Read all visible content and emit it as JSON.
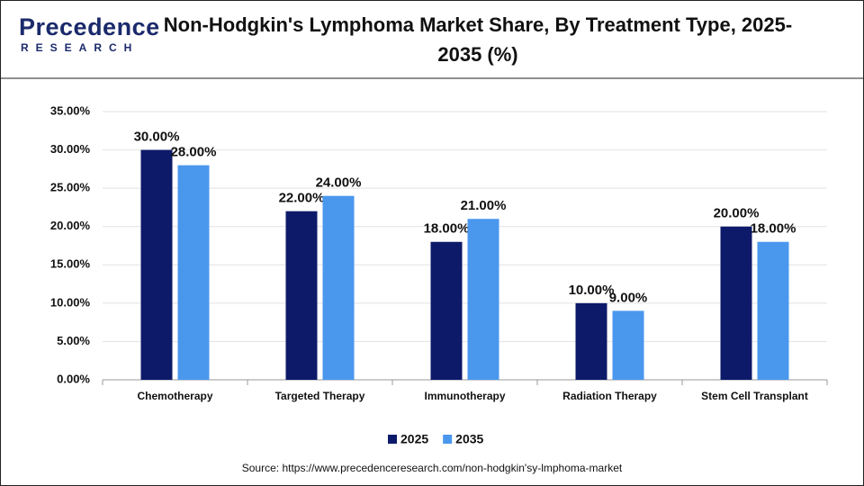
{
  "logo": {
    "name": "Precedence",
    "tagline": "RESEARCH"
  },
  "chart_data": {
    "type": "bar",
    "title": "Non-Hodgkin's Lymphoma Market Share, By Treatment Type, 2025-2035 (%)",
    "categories": [
      "Chemotherapy",
      "Targeted Therapy",
      "Immunotherapy",
      "Radiation Therapy",
      "Stem Cell Transplant"
    ],
    "series": [
      {
        "name": "2025",
        "color": "#0d1a69",
        "values": [
          30,
          22,
          18,
          10,
          20
        ],
        "value_labels": [
          "30.00%",
          "22.00%",
          "18.00%",
          "10.00%",
          "20.00%"
        ]
      },
      {
        "name": "2035",
        "color": "#4a97ee",
        "values": [
          28,
          24,
          21,
          9,
          18
        ],
        "value_labels": [
          "28.00%",
          "24.00%",
          "21.00%",
          "9.00%",
          "18.00%"
        ]
      }
    ],
    "ylim": [
      0,
      35
    ],
    "yticks": [
      {
        "value": 0,
        "label": "0.00%"
      },
      {
        "value": 5,
        "label": "5.00%"
      },
      {
        "value": 10,
        "label": "10.00%"
      },
      {
        "value": 15,
        "label": "15.00%"
      },
      {
        "value": 20,
        "label": "20.00%"
      },
      {
        "value": 25,
        "label": "25.00%"
      },
      {
        "value": 30,
        "label": "30.00%"
      },
      {
        "value": 35,
        "label": "35.00%"
      }
    ],
    "grid": true,
    "legend": "bottom",
    "source": "Source: https://www.precedenceresearch.com/non-hodgkin'sy-lmphoma-market"
  }
}
